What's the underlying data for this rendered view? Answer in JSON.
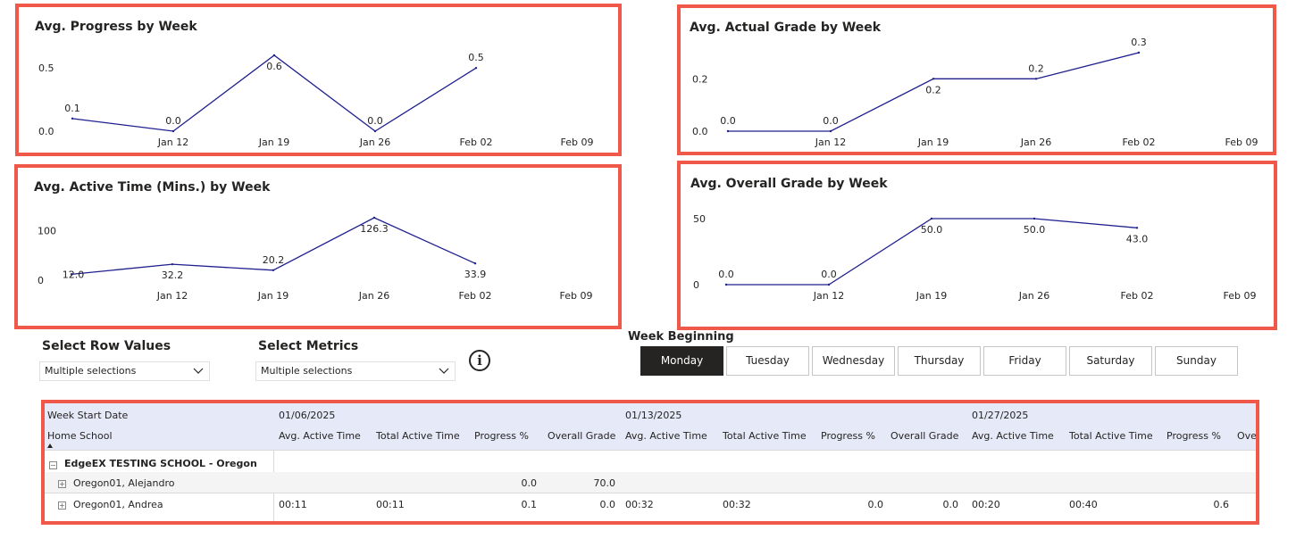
{
  "charts": [
    {
      "id": "progress",
      "title": "Avg. Progress by Week",
      "yticks": [
        "0.5",
        "0.0"
      ],
      "ytick_values": [
        0.5,
        0.0
      ],
      "ylim": [
        0,
        0.6
      ],
      "xlabels": [
        "Jan 12",
        "Jan 19",
        "Jan 26",
        "Feb 02",
        "Feb 09"
      ],
      "values": [
        0.1,
        0.0,
        0.6,
        0.0,
        0.5
      ],
      "labels": [
        "0.1",
        "0.0",
        "0.6",
        "0.0",
        "0.5"
      ]
    },
    {
      "id": "actual_grade",
      "title": "Avg. Actual Grade by Week",
      "yticks": [
        "0.2",
        "0.0"
      ],
      "ytick_values": [
        0.2,
        0.0
      ],
      "ylim": [
        0,
        0.3
      ],
      "xlabels": [
        "Jan 12",
        "Jan 19",
        "Jan 26",
        "Feb 02",
        "Feb 09"
      ],
      "values": [
        0.0,
        0.0,
        0.2,
        0.2,
        0.3
      ],
      "labels": [
        "0.0",
        "0.0",
        "0.2",
        "0.2",
        "0.3"
      ]
    },
    {
      "id": "active_time",
      "title": "Avg. Active Time (Mins.) by Week",
      "yticks": [
        "100",
        "0"
      ],
      "ytick_values": [
        100,
        0
      ],
      "ylim": [
        0,
        126.3
      ],
      "xlabels": [
        "Jan 12",
        "Jan 19",
        "Jan 26",
        "Feb 02",
        "Feb 09"
      ],
      "values": [
        12.0,
        32.2,
        20.2,
        126.3,
        33.9
      ],
      "labels": [
        "12.0",
        "32.2",
        "20.2",
        "126.3",
        "33.9"
      ]
    },
    {
      "id": "overall_grade",
      "title": "Avg. Overall Grade by Week",
      "yticks": [
        "50",
        "0"
      ],
      "ytick_values": [
        50,
        0
      ],
      "ylim": [
        0,
        50
      ],
      "xlabels": [
        "Jan 12",
        "Jan 19",
        "Jan 26",
        "Feb 02",
        "Feb 09"
      ],
      "values": [
        0.0,
        0.0,
        50.0,
        50.0,
        43.0
      ],
      "labels": [
        "0.0",
        "0.0",
        "50.0",
        "50.0",
        "43.0"
      ]
    }
  ],
  "slicers": {
    "row_values": {
      "title": "Select Row Values",
      "value": "Multiple selections"
    },
    "metrics": {
      "title": "Select Metrics",
      "value": "Multiple selections"
    }
  },
  "week_beginning": {
    "title": "Week Beginning",
    "days": [
      "Monday",
      "Tuesday",
      "Wednesday",
      "Thursday",
      "Friday",
      "Saturday",
      "Sunday"
    ],
    "selected": "Monday"
  },
  "table": {
    "row_header_1": "Week Start Date",
    "row_header_2": "Home School",
    "dates": [
      "01/06/2025",
      "01/13/2025",
      "01/27/2025"
    ],
    "columns": [
      "Avg. Active Time",
      "Total Active Time",
      "Progress %",
      "Overall Grade",
      "Avg. Active Time",
      "Total Active Time",
      "Progress %",
      "Overall Grade",
      "Avg. Active Time",
      "Total Active Time",
      "Progress %",
      "Overall Grade"
    ],
    "group": "EdgeEX TESTING SCHOOL - Oregon",
    "rows": [
      {
        "name": "Oregon01, Alejandro",
        "values": [
          "",
          "",
          "0.0",
          "70.0",
          "",
          "",
          "",
          "",
          "",
          "",
          "",
          ""
        ]
      },
      {
        "name": "Oregon01, Andrea",
        "values": [
          "00:11",
          "00:11",
          "0.1",
          "0.0",
          "00:32",
          "00:32",
          "0.0",
          "0.0",
          "00:20",
          "00:40",
          "0.6",
          ""
        ]
      }
    ]
  },
  "colors": {
    "line": "#1f1f8f",
    "highlight_border": "#f0584a",
    "header_band": "#e6e9f8"
  },
  "icons": {
    "info": "info-circle-icon",
    "dropdown": "chevron-down-icon",
    "expand": "plus-square-icon",
    "collapse": "minus-square-icon"
  }
}
